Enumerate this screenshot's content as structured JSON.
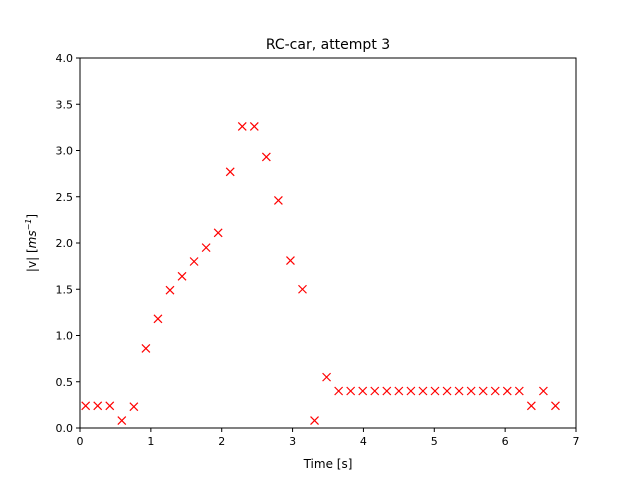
{
  "chart_data": {
    "type": "scatter",
    "title": "RC-car, attempt 3",
    "xlabel": "Time [s]",
    "ylabel_main": "|v| [",
    "ylabel_unit": "ms",
    "ylabel_exp": "−1",
    "ylabel_close": "]",
    "xlim": [
      0,
      7
    ],
    "ylim": [
      0,
      4
    ],
    "grid": false,
    "marker": "x",
    "marker_color": "#ff0000",
    "x_ticks": [
      0,
      1,
      2,
      3,
      4,
      5,
      6,
      7
    ],
    "x_tick_labels": [
      "0",
      "1",
      "2",
      "3",
      "4",
      "5",
      "6",
      "7"
    ],
    "y_ticks": [
      0,
      0.5,
      1,
      1.5,
      2,
      2.5,
      3,
      3.5,
      4
    ],
    "y_tick_labels": [
      "0.0",
      "0.5",
      "1.0",
      "1.5",
      "2.0",
      "2.5",
      "3.0",
      "3.5",
      "4.0"
    ],
    "series": [
      {
        "x": [
          0.08,
          0.25,
          0.42,
          0.59,
          0.76,
          0.93,
          1.1,
          1.27,
          1.44,
          1.61,
          1.78,
          1.95,
          2.12,
          2.29,
          2.46,
          2.63,
          2.8,
          2.97,
          3.14,
          3.31,
          3.48,
          3.65,
          3.82,
          3.99,
          4.16,
          4.33,
          4.5,
          4.67,
          4.84,
          5.01,
          5.18,
          5.35,
          5.52,
          5.69,
          5.86,
          6.03,
          6.2,
          6.37,
          6.54,
          6.71
        ],
        "y": [
          0.24,
          0.24,
          0.24,
          0.08,
          0.23,
          0.86,
          1.18,
          1.49,
          1.64,
          1.8,
          1.95,
          2.11,
          2.77,
          3.26,
          3.26,
          2.93,
          2.46,
          1.81,
          1.5,
          0.08,
          0.55,
          0.4,
          0.4,
          0.4,
          0.4,
          0.4,
          0.4,
          0.4,
          0.4,
          0.4,
          0.4,
          0.4,
          0.4,
          0.4,
          0.4,
          0.4,
          0.4,
          0.24,
          0.4,
          0.24
        ]
      }
    ]
  }
}
